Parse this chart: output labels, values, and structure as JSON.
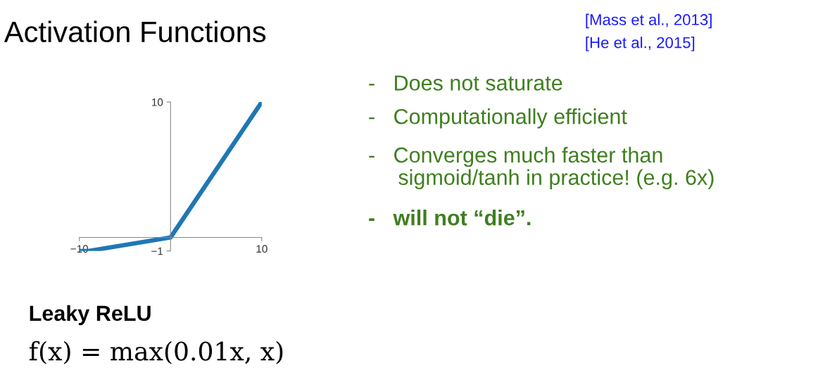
{
  "chart_data": {
    "type": "line",
    "title": "Activation Functions",
    "x": [
      -10,
      -9,
      0,
      10
    ],
    "series": [
      {
        "color": "#1f77b4",
        "values": [
          -1,
          -1,
          0,
          10
        ]
      }
    ],
    "xlim": [
      -10,
      10
    ],
    "xticks": [
      -10,
      10
    ],
    "ylim": [
      -1,
      10
    ],
    "yticks": [
      -1,
      10
    ],
    "grid": false,
    "legend": false,
    "marker": "none",
    "line_style": "solid",
    "annotations": [
      "[Mass et al., 2013]",
      "[He et al., 2015]",
      "-   Does not saturate",
      "-   Computationally efficient",
      "-   Converges much faster than\n     sigmoid/tanh in practice! (e.g. 6x)",
      "-   will not “die”.",
      "Leaky ReLU",
      "f(x) = max(0.01x, x)"
    ]
  }
}
